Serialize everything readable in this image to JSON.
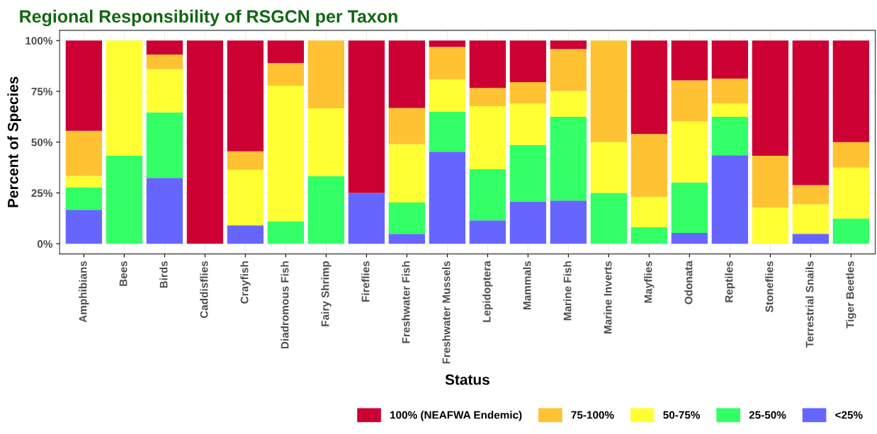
{
  "chart_data": {
    "type": "bar",
    "stacked": true,
    "title": "Regional Responsibility of RSGCN per Taxon",
    "xlabel": "Status",
    "ylabel": "Percent of Species",
    "categories": [
      "Amphibians",
      "Bees",
      "Birds",
      "Caddisflies",
      "Crayfish",
      "Diadromous Fish",
      "Fairy Shrimp",
      "Fireflies",
      "Freshwater Fish",
      "Freshwater Mussels",
      "Lepidoptera",
      "Mammals",
      "Marine Fish",
      "Marine Inverts",
      "Mayflies",
      "Odonata",
      "Reptiles",
      "Stoneflies",
      "Terrestrial Snails",
      "Tiger Beetles"
    ],
    "series": [
      {
        "name": "<25%",
        "color": "#6666ff",
        "values": [
          16.7,
          0,
          32.4,
          0,
          9.1,
          0,
          0,
          25,
          4.9,
          45.3,
          11.5,
          20.7,
          21.3,
          0,
          0,
          5.3,
          43.6,
          0,
          4.9,
          0
        ]
      },
      {
        "name": "25-50%",
        "color": "#33ff66",
        "values": [
          11.1,
          43.3,
          32.2,
          0,
          0,
          11.1,
          33.3,
          0,
          15.4,
          19.6,
          25.2,
          27.9,
          41.2,
          25,
          8.1,
          24.8,
          18.9,
          0,
          0,
          12.5
        ]
      },
      {
        "name": "50-75%",
        "color": "#ffff33",
        "values": [
          5.6,
          56.7,
          21.3,
          0,
          27.3,
          66.7,
          33.3,
          0,
          28.7,
          16.0,
          31.0,
          20.4,
          12.7,
          25,
          15.0,
          30.1,
          6.5,
          17.9,
          14.5,
          25
        ]
      },
      {
        "name": "75-100%",
        "color": "#ffc233",
        "values": [
          22.2,
          0,
          7.2,
          0,
          9.1,
          11.1,
          33.4,
          0,
          17.8,
          16.0,
          9.0,
          10.5,
          20.6,
          50,
          30.9,
          20.2,
          12.3,
          25.4,
          9.4,
          12.5
        ]
      },
      {
        "name": "100% (NEAFWA Endemic)",
        "color": "#cc0033",
        "values": [
          44.4,
          0,
          6.9,
          100,
          54.5,
          11.1,
          0,
          75,
          33.2,
          3.1,
          23.3,
          20.5,
          4.2,
          0,
          46.0,
          19.6,
          18.7,
          56.7,
          71.2,
          50
        ]
      }
    ],
    "ylim": [
      -5,
      105
    ],
    "yticks": [
      {
        "value": 0,
        "label": "0%"
      },
      {
        "value": 25,
        "label": "25%"
      },
      {
        "value": 50,
        "label": "50%"
      },
      {
        "value": 75,
        "label": "75%"
      },
      {
        "value": 100,
        "label": "100%"
      }
    ],
    "grid": true,
    "legend": "bottom right"
  }
}
